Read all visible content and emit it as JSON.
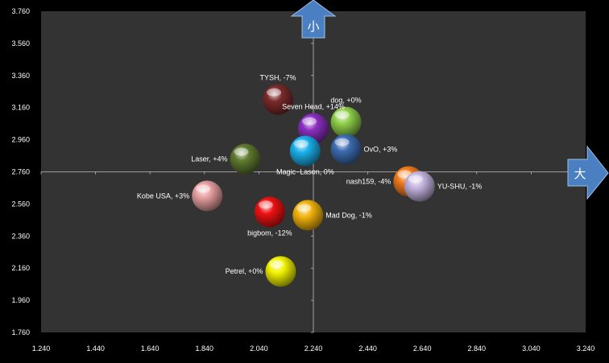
{
  "chart_data": {
    "type": "scatter",
    "title": "",
    "xlabel": "",
    "ylabel": "",
    "xlim": [
      1.24,
      3.24
    ],
    "ylim": [
      1.76,
      3.76
    ],
    "x_ticks": [
      "1.240",
      "1.440",
      "1.640",
      "1.840",
      "2.040",
      "2.240",
      "2.440",
      "2.640",
      "2.840",
      "3.040",
      "3.240"
    ],
    "y_ticks": [
      "1.760",
      "1.960",
      "2.160",
      "2.360",
      "2.560",
      "2.760",
      "2.960",
      "3.160",
      "3.360",
      "3.560",
      "3.760"
    ],
    "axis_cross": {
      "x": 2.24,
      "y": 2.76
    },
    "plot_background": "#333333",
    "axis_arrows": {
      "y_label": "小",
      "x_label": "大",
      "color": "#4a7fc1"
    },
    "points": [
      {
        "label": "TYSH, -7%",
        "x": 2.11,
        "y": 3.21,
        "color": "#7a2a2a"
      },
      {
        "label": "dog, +0%",
        "x": 2.36,
        "y": 3.07,
        "color": "#8fcf4a"
      },
      {
        "label": "Seven Head, +14%",
        "x": 2.24,
        "y": 3.03,
        "color": "#8a2fc0"
      },
      {
        "label": "OvO, +3%",
        "x": 2.36,
        "y": 2.9,
        "color": "#3d6cb0"
      },
      {
        "label": "Laser, +4%",
        "x": 1.99,
        "y": 2.84,
        "color": "#5f7a2e"
      },
      {
        "label": "Magic~Lason, 0%",
        "x": 2.21,
        "y": 2.89,
        "color": "#1bb0ea"
      },
      {
        "label": "nash159, -4%",
        "x": 2.59,
        "y": 2.7,
        "color": "#f07a1c"
      },
      {
        "label": "YU-SHU, -1%",
        "x": 2.63,
        "y": 2.67,
        "color": "#c4b4e0"
      },
      {
        "label": "Kobe USA, +3%",
        "x": 1.85,
        "y": 2.61,
        "color": "#e8a0a0"
      },
      {
        "label": "bigbom, -12%",
        "x": 2.08,
        "y": 2.51,
        "color": "#ee1111"
      },
      {
        "label": "Mad Dog, -1%",
        "x": 2.22,
        "y": 2.49,
        "color": "#f2b30c"
      },
      {
        "label": "Petrel, +0%",
        "x": 2.12,
        "y": 2.14,
        "color": "#f2f200"
      }
    ]
  }
}
